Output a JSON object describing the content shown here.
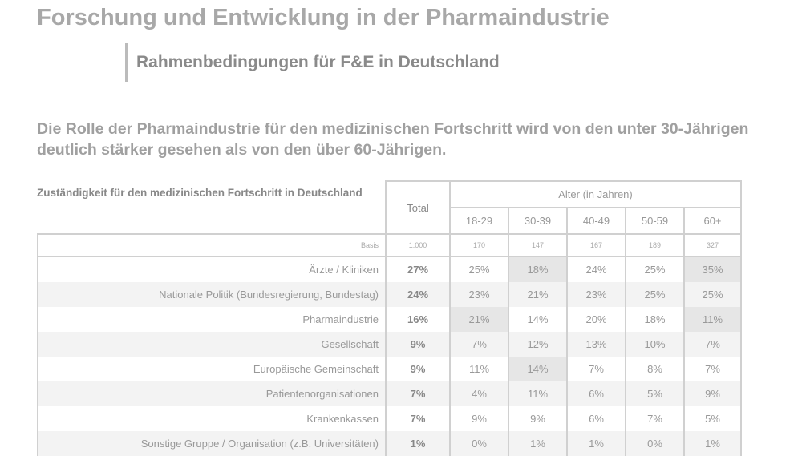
{
  "title": "Forschung und Entwicklung in der Pharmaindustrie",
  "subtitle": "Rahmenbedingungen für F&E in Deutschland",
  "lead": "Die Rolle der Pharmaindustrie für den medizinischen Fortschritt wird von den unter 30-Jährigen deutlich stärker gesehen als von den über 60-Jährigen.",
  "table": {
    "question": "Zuständigkeit für den medizinischen Fortschritt in Deutschland",
    "total_label": "Total",
    "age_group_label": "Alter (in Jahren)",
    "age_groups": [
      "18-29",
      "30-39",
      "40-49",
      "50-59",
      "60+"
    ],
    "basis_label": "Basis",
    "basis": [
      "1.000",
      "170",
      "147",
      "167",
      "189",
      "327"
    ],
    "rows": [
      {
        "label": "Ärzte / Kliniken",
        "values": [
          "27%",
          "25%",
          "18%",
          "24%",
          "25%",
          "35%"
        ]
      },
      {
        "label": "Nationale Politik (Bundesregierung, Bundestag)",
        "values": [
          "24%",
          "23%",
          "21%",
          "23%",
          "25%",
          "25%"
        ]
      },
      {
        "label": "Pharmaindustrie",
        "values": [
          "16%",
          "21%",
          "14%",
          "20%",
          "18%",
          "11%"
        ]
      },
      {
        "label": "Gesellschaft",
        "values": [
          "9%",
          "7%",
          "12%",
          "13%",
          "10%",
          "7%"
        ]
      },
      {
        "label": "Europäische Gemeinschaft",
        "values": [
          "9%",
          "11%",
          "14%",
          "7%",
          "8%",
          "7%"
        ]
      },
      {
        "label": "Patientenorganisationen",
        "values": [
          "7%",
          "4%",
          "11%",
          "6%",
          "5%",
          "9%"
        ]
      },
      {
        "label": "Krankenkassen",
        "values": [
          "7%",
          "9%",
          "9%",
          "6%",
          "7%",
          "5%"
        ]
      },
      {
        "label": "Sonstige Gruppe / Organisation (z.B. Universitäten)",
        "values": [
          "1%",
          "0%",
          "1%",
          "1%",
          "0%",
          "1%"
        ]
      }
    ]
  }
}
